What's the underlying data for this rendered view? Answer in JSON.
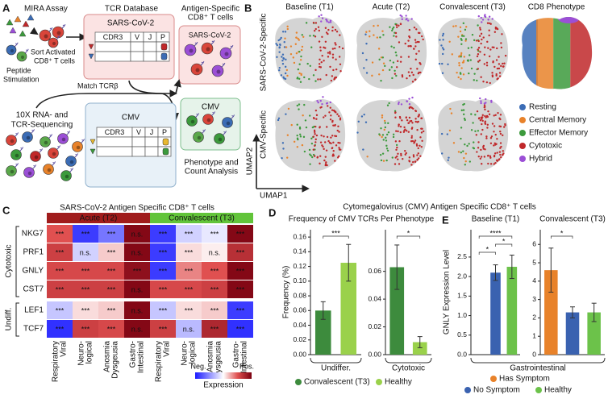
{
  "panel_a": {
    "letter": "A",
    "mira": "MIRA Assay",
    "sort": [
      "Sort Activated",
      "CD8⁺ T cells"
    ],
    "peptide": [
      "Peptide",
      "Stimulation"
    ],
    "tcr_db": "TCR Database",
    "sars_db": "SARS-CoV-2",
    "sars_cols": [
      "CDR3",
      "V",
      "J",
      "P"
    ],
    "antigen": [
      "Antigen-Specific",
      "CD8⁺ T cells"
    ],
    "sars_out": "SARS-CoV-2",
    "match": "Match TCRβ",
    "seq": [
      "10X RNA- and",
      "TCR-Sequencing"
    ],
    "cmv_db": "CMV",
    "cmv_cols": [
      "CDR3",
      "V",
      "J",
      "P"
    ],
    "cmv_out": "CMV",
    "analysis": [
      "Phenotype and",
      "Count Analysis"
    ]
  },
  "panel_b": {
    "letter": "B",
    "columns": [
      "Baseline (T1)",
      "Acute (T2)",
      "Convalescent (T3)",
      "CD8 Phenotype"
    ],
    "rows": [
      "SARS-CoV-2-Specific",
      "CMV-Specific"
    ],
    "x_label": "UMAP1",
    "y_label": "UMAP2",
    "legend": [
      {
        "name": "Resting",
        "color": "#3b6cb5"
      },
      {
        "name": "Central Memory",
        "color": "#e8822a"
      },
      {
        "name": "Effector Memory",
        "color": "#3c9a3c"
      },
      {
        "name": "Cytotoxic",
        "color": "#c0282a"
      },
      {
        "name": "Hybrid",
        "color": "#9b4fd6"
      }
    ]
  },
  "panel_c": {
    "letter": "C",
    "title": "SARS-CoV-2 Antigen Specific CD8⁺ T cells",
    "groups": [
      {
        "name": "Acute (T2)",
        "color": "#a01c1c"
      },
      {
        "name": "Convalescent (T3)",
        "color": "#62c43a"
      }
    ],
    "columns": [
      [
        "Respiratory",
        "Viral"
      ],
      [
        "Neuro-",
        "logical"
      ],
      [
        "Anosmia",
        "Dysgeusia"
      ],
      [
        "Gastro-",
        "Intestinal"
      ]
    ],
    "genes": [
      "NKG7",
      "PRF1",
      "GNLY",
      "CST7",
      "LEF1",
      "TCF7"
    ],
    "gene_groups": [
      "Cytotoxic",
      "Undiff."
    ],
    "zlim": [
      -1,
      1
    ],
    "values": [
      [
        0.5,
        -0.85,
        -0.6,
        0.95,
        -0.85,
        -0.2,
        -0.1,
        0.95
      ],
      [
        0.6,
        -0.2,
        0.15,
        0.95,
        -0.85,
        0.1,
        0.05,
        0.7
      ],
      [
        0.55,
        0.55,
        0.55,
        0.9,
        -0.85,
        0.35,
        0.5,
        0.95
      ],
      [
        0.6,
        0.6,
        0.6,
        0.95,
        0.55,
        0.55,
        0.6,
        0.95
      ],
      [
        -0.25,
        0.1,
        0.15,
        0.95,
        -0.25,
        0.1,
        0.15,
        -0.85
      ],
      [
        -0.9,
        0.6,
        0.55,
        0.95,
        0.6,
        -0.3,
        0.75,
        -0.9
      ]
    ],
    "labels": [
      [
        "***",
        "***",
        "***",
        "n.s.",
        "***",
        "***",
        "***",
        "***"
      ],
      [
        "***",
        "n.s.",
        "***",
        "n.s.",
        "***",
        "***",
        "n.s.",
        "***"
      ],
      [
        "***",
        "***",
        "***",
        "***",
        "***",
        "***",
        "***",
        "***"
      ],
      [
        "***",
        "***",
        "***",
        "n.s.",
        "***",
        "***",
        "***",
        "***"
      ],
      [
        "***",
        "***",
        "***",
        "n.s.",
        "***",
        "***",
        "***",
        "***"
      ],
      [
        "***",
        "***",
        "***",
        "n.s.",
        "***",
        "n.s.",
        "***",
        "***"
      ]
    ],
    "colorbar": {
      "low": "Neg.",
      "high": "Pos.",
      "label": "Expression"
    }
  },
  "panel_de": {
    "d_letter": "D",
    "title": "Cytomegalovirus (CMV) Antigen Specific CD8⁺ T cells",
    "d_subtitle": "Frequency of CMV TCRs Per Phenotype",
    "e_letter": "E",
    "e_category": "Gastrointestinal"
  },
  "chart_data": [
    {
      "type": "bar",
      "categories": [
        "Undiffer."
      ],
      "y_label": "Frequency (%)",
      "series": [
        {
          "name": "Convalescent (T3)",
          "color": "#3d8b3d",
          "values": [
            0.06
          ],
          "errors": [
            0.012
          ]
        },
        {
          "name": "Healthy",
          "color": "#9ad14b",
          "values": [
            0.125
          ],
          "errors": [
            0.025
          ]
        }
      ],
      "ylim": [
        0,
        0.17
      ],
      "yticks": [
        {
          "value": 0,
          "label": "0.00"
        },
        {
          "value": 0.02,
          "label": "0.02"
        },
        {
          "value": 0.04,
          "label": "0.04"
        },
        {
          "value": 0.06,
          "label": "0.06"
        },
        {
          "value": 0.08,
          "label": "0.08"
        },
        {
          "value": 0.1,
          "label": "0.10"
        },
        {
          "value": 0.12,
          "label": "0.12"
        },
        {
          "value": 0.14,
          "label": "0.14"
        },
        {
          "value": 0.16,
          "label": "0.16"
        }
      ],
      "significance": [
        "***"
      ]
    },
    {
      "type": "bar",
      "categories": [
        "Cytotoxic"
      ],
      "series": [
        {
          "name": "Convalescent (T3)",
          "color": "#3d8b3d",
          "values": [
            0.063
          ],
          "errors": [
            0.016
          ]
        },
        {
          "name": "Healthy",
          "color": "#9ad14b",
          "values": [
            0.009
          ],
          "errors": [
            0.004
          ]
        }
      ],
      "ylim": [
        0,
        0.09
      ],
      "yticks": [
        {
          "value": 0,
          "label": "0.00"
        },
        {
          "value": 0.02,
          "label": "0.02"
        },
        {
          "value": 0.04,
          "label": "0.04"
        },
        {
          "value": 0.06,
          "label": "0.06"
        }
      ],
      "significance": [
        "*"
      ]
    },
    {
      "type": "bar",
      "title": "Baseline (T1)",
      "y_label": "GNLY Expression Level",
      "series": [
        {
          "name": "Has Symptom",
          "color": "#e8822a",
          "values": [
            null
          ],
          "errors": [
            null
          ]
        },
        {
          "name": "No Symptom",
          "color": "#3a62b0",
          "values": [
            2.1
          ],
          "errors": [
            0.2
          ]
        },
        {
          "name": "Healthy",
          "color": "#6cc24a",
          "values": [
            2.25
          ],
          "errors": [
            0.3
          ]
        }
      ],
      "ylim": [
        0,
        3.2
      ],
      "yticks": [
        {
          "value": 0,
          "label": "0.0"
        },
        {
          "value": 0.5,
          "label": "0.5"
        },
        {
          "value": 1,
          "label": "1.0"
        },
        {
          "value": 1.5,
          "label": "1.5"
        },
        {
          "value": 2,
          "label": "2.0"
        },
        {
          "value": 2.5,
          "label": "2.5"
        }
      ],
      "significance": [
        "*",
        "****",
        "*"
      ]
    },
    {
      "type": "bar",
      "title": "Convalescent (T3)",
      "series": [
        {
          "name": "Has Symptom",
          "color": "#e8822a",
          "values": [
            4.6
          ],
          "errors": [
            1.2
          ]
        },
        {
          "name": "No Symptom",
          "color": "#3a62b0",
          "values": [
            2.3
          ],
          "errors": [
            0.3
          ]
        },
        {
          "name": "Healthy",
          "color": "#6cc24a",
          "values": [
            2.3
          ],
          "errors": [
            0.5
          ]
        }
      ],
      "ylim": [
        0,
        6.8
      ],
      "yticks": [
        0,
        1,
        2,
        3,
        4,
        5,
        6
      ],
      "significance": [
        "*"
      ]
    }
  ]
}
